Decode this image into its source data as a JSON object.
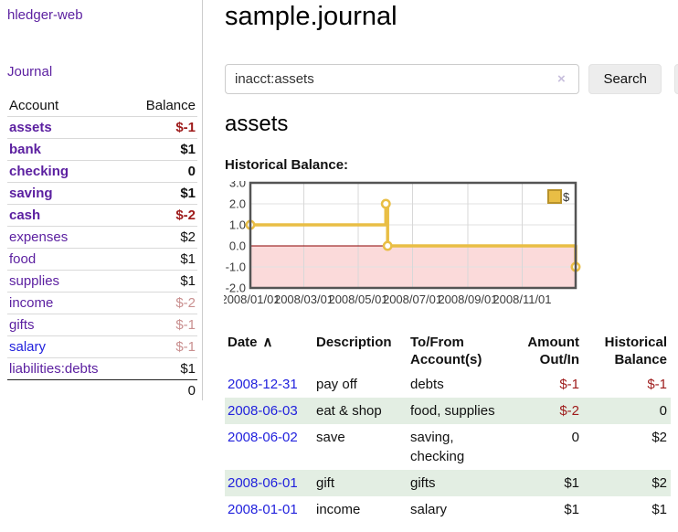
{
  "app_title": "hledger-web",
  "sidebar": {
    "journal_link": "Journal",
    "accounts": {
      "col_account": "Account",
      "col_balance": "Balance",
      "rows": [
        {
          "account": "assets",
          "balance": "$-1",
          "depth": 1,
          "bold": true,
          "balance_style": "negstrong"
        },
        {
          "account": "bank",
          "balance": "$1",
          "depth": 2,
          "bold": true,
          "balance_style": ""
        },
        {
          "account": "checking",
          "balance": "0",
          "depth": 3,
          "bold": true,
          "balance_style": ""
        },
        {
          "account": "saving",
          "balance": "$1",
          "depth": 3,
          "bold": true,
          "balance_style": ""
        },
        {
          "account": "cash",
          "balance": "$-2",
          "depth": 2,
          "bold": true,
          "balance_style": "negstrong"
        },
        {
          "account": "expenses",
          "balance": "$2",
          "depth": 1,
          "bold": false,
          "balance_style": ""
        },
        {
          "account": "food",
          "balance": "$1",
          "depth": 2,
          "bold": false,
          "balance_style": ""
        },
        {
          "account": "supplies",
          "balance": "$1",
          "depth": 2,
          "bold": false,
          "balance_style": ""
        },
        {
          "account": "income",
          "balance": "$-2",
          "depth": 1,
          "bold": false,
          "balance_style": "negfaint"
        },
        {
          "account": "gifts",
          "balance": "$-1",
          "depth": 2,
          "bold": false,
          "balance_style": "negfaint"
        },
        {
          "account": "salary",
          "balance": "$-1",
          "depth": 2,
          "bold": false,
          "balance_style": "negfaint",
          "link_style": "blue"
        },
        {
          "account": "liabilities:debts",
          "balance": "$1",
          "depth": 1,
          "bold": false,
          "balance_style": ""
        }
      ],
      "total": "0"
    }
  },
  "main": {
    "title": "sample.journal",
    "search": {
      "value": "inacct:assets",
      "clear_icon": "×",
      "search_button": "Search",
      "help_button": "?"
    },
    "account_heading": "assets",
    "chart_heading": "Historical Balance:"
  },
  "chart_data": {
    "type": "line",
    "step": true,
    "title": "Historical Balance:",
    "x_range": [
      "2008-01-01",
      "2008-12-31"
    ],
    "ylim": [
      -2,
      3
    ],
    "x_ticks": [
      "2008/01/01",
      "2008/03/01",
      "2008/05/01",
      "2008/07/01",
      "2008/09/01",
      "2008/11/01"
    ],
    "y_ticks": [
      "3.0",
      "2.0",
      "1.0",
      "0.0",
      "-1.0",
      "-2.0"
    ],
    "series": [
      {
        "name": "$",
        "color": "#E9BE45",
        "points": [
          [
            "2008-01-01",
            1
          ],
          [
            "2008-06-01",
            2
          ],
          [
            "2008-06-03",
            0
          ],
          [
            "2008-12-31",
            -1
          ]
        ]
      }
    ],
    "legend": {
      "label": "$",
      "position": "top-right"
    },
    "colors": {
      "negative_region": "#fbdada",
      "zero_line": "#8b0000",
      "grid_v": "#d8d8d8",
      "grid_h": "#e2e2e2",
      "border": "#545454"
    }
  },
  "register": {
    "headers": [
      {
        "label": "Date",
        "sort": "∧"
      },
      {
        "label": "Description"
      },
      {
        "label": "To/From Account(s)"
      },
      {
        "label": "Amount Out/In",
        "align": "r"
      },
      {
        "label": "Historical Balance",
        "align": "r"
      }
    ],
    "rows": [
      {
        "date": "2008-12-31",
        "description": "pay off",
        "accounts": "debts",
        "amount": "$-1",
        "balance": "$-1",
        "amount_style": "neg",
        "balance_style": "neg"
      },
      {
        "date": "2008-06-03",
        "description": "eat & shop",
        "accounts": "food, supplies",
        "amount": "$-2",
        "balance": "0",
        "amount_style": "neg",
        "balance_style": ""
      },
      {
        "date": "2008-06-02",
        "description": "save",
        "accounts": "saving, checking",
        "amount": "0",
        "balance": "$2",
        "amount_style": "",
        "balance_style": ""
      },
      {
        "date": "2008-06-01",
        "description": "gift",
        "accounts": "gifts",
        "amount": "$1",
        "balance": "$2",
        "amount_style": "",
        "balance_style": ""
      },
      {
        "date": "2008-01-01",
        "description": "income",
        "accounts": "salary",
        "amount": "$1",
        "balance": "$1",
        "amount_style": "",
        "balance_style": ""
      }
    ]
  }
}
